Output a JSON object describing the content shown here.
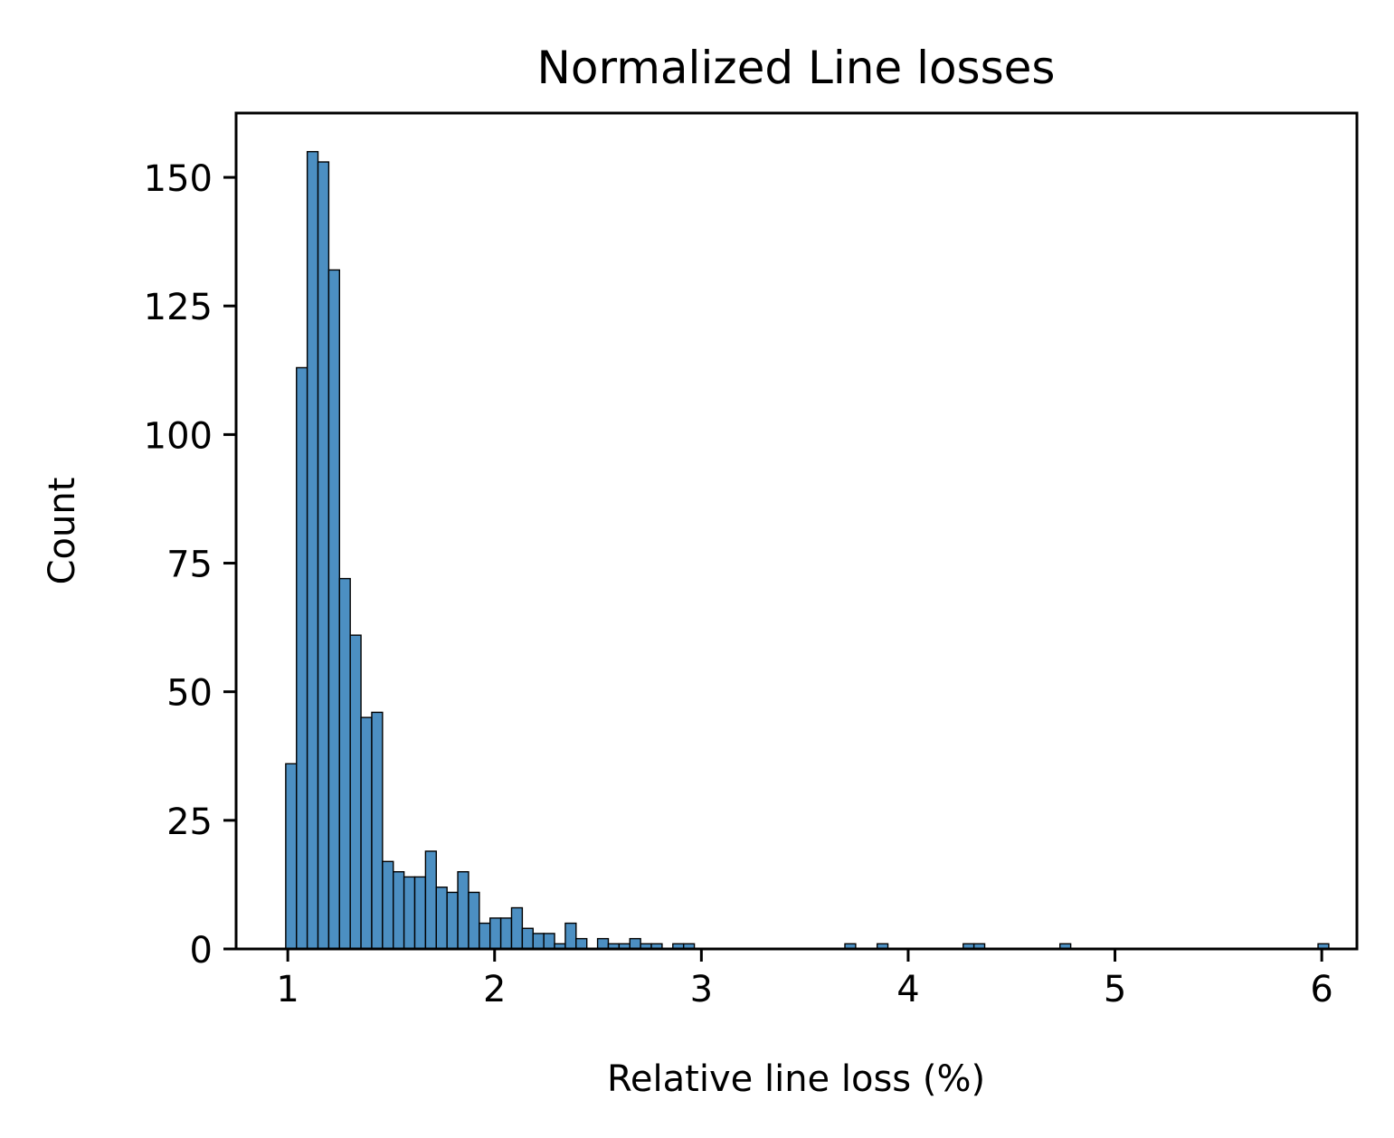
{
  "chart_data": {
    "type": "bar",
    "title": "Normalized Line losses",
    "xlabel": "Relative line loss (%)",
    "ylabel": "Count",
    "xlim": [
      0.75,
      6.17
    ],
    "ylim": [
      0,
      162.5
    ],
    "xticks": [
      1,
      2,
      3,
      4,
      5,
      6
    ],
    "xtick_labels": [
      "1",
      "2",
      "3",
      "4",
      "5",
      "6"
    ],
    "yticks": [
      0,
      25,
      50,
      75,
      100,
      125,
      150
    ],
    "ytick_labels": [
      "0",
      "25",
      "50",
      "75",
      "100",
      "125",
      "150"
    ],
    "grid": false,
    "legend": "none",
    "bar_color": "#4c8fc2",
    "edge_color": "#000000",
    "bin_start": 0.99,
    "bin_width": 0.052,
    "values": [
      36,
      113,
      155,
      153,
      132,
      72,
      61,
      45,
      46,
      17,
      15,
      14,
      14,
      19,
      12,
      11,
      15,
      11,
      5,
      6,
      6,
      8,
      4,
      3,
      3,
      1,
      5,
      2,
      0,
      2,
      1,
      1,
      2,
      1,
      1,
      0,
      1,
      1,
      0,
      0,
      0,
      0,
      0,
      0,
      0,
      0,
      0,
      0,
      0,
      0,
      0,
      0,
      1,
      0,
      0,
      1,
      0,
      0,
      0,
      0,
      0,
      0,
      0,
      1,
      1,
      0,
      0,
      0,
      0,
      0,
      0,
      0,
      1,
      0,
      0,
      0,
      0,
      0,
      0,
      0,
      0,
      0,
      0,
      0,
      0,
      0,
      0,
      0,
      0,
      0,
      0,
      0,
      0,
      0,
      0,
      0,
      1
    ]
  }
}
